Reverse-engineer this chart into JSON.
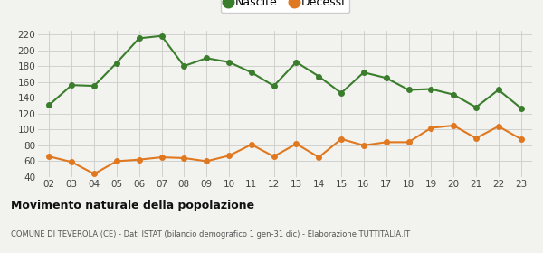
{
  "years": [
    "02",
    "03",
    "04",
    "05",
    "06",
    "07",
    "08",
    "09",
    "10",
    "11",
    "12",
    "13",
    "14",
    "15",
    "16",
    "17",
    "18",
    "19",
    "20",
    "21",
    "22",
    "23"
  ],
  "nascite": [
    131,
    156,
    155,
    184,
    215,
    218,
    180,
    190,
    185,
    172,
    155,
    185,
    167,
    146,
    172,
    165,
    150,
    151,
    144,
    128,
    150,
    127
  ],
  "decessi": [
    66,
    59,
    44,
    60,
    62,
    65,
    64,
    60,
    67,
    81,
    66,
    82,
    65,
    88,
    80,
    84,
    84,
    102,
    105,
    89,
    104,
    88
  ],
  "nascite_color": "#3a7d2c",
  "decessi_color": "#e07820",
  "bg_color": "#f2f2ee",
  "grid_color": "#d0d0d0",
  "ylim": [
    40,
    225
  ],
  "yticks": [
    40,
    60,
    80,
    100,
    120,
    140,
    160,
    180,
    200,
    220
  ],
  "title": "Movimento naturale della popolazione",
  "subtitle": "COMUNE DI TEVEROLA (CE) - Dati ISTAT (bilancio demografico 1 gen-31 dic) - Elaborazione TUTTITALIA.IT",
  "legend_nascite": "Nascite",
  "legend_decessi": "Decessi",
  "marker_size": 4,
  "line_width": 1.5
}
